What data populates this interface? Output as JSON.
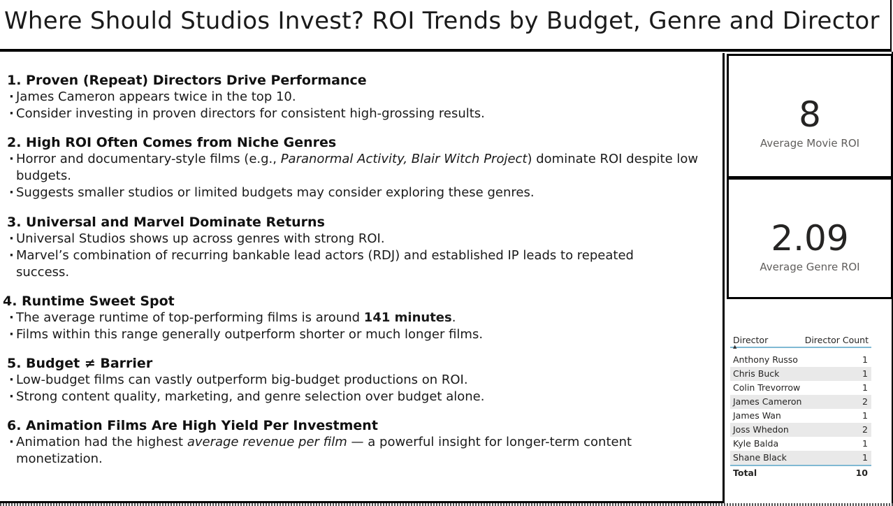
{
  "title": "Where Should Studios Invest? ROI Trends by Budget, Genre and Director",
  "sections": [
    {
      "heading": "1. Proven (Repeat) Directors Drive Performance",
      "bullets": [
        "James Cameron appears twice in the top 10.",
        "Consider investing in proven directors for consistent high-grossing results."
      ]
    },
    {
      "heading": "2. High ROI Often Comes from Niche Genres",
      "bullets": [
        {
          "pre": "Horror and documentary-style films (e.g., ",
          "em": "Paranormal Activity, Blair Witch Project",
          "post": ") dominate ROI despite low budgets."
        },
        "Suggests smaller studios or limited budgets may consider exploring these genres."
      ]
    },
    {
      "heading": "3. Universal and Marvel Dominate Returns",
      "bullets": [
        "Universal Studios shows up across genres with strong ROI.",
        "Marvel’s combination of recurring bankable lead actors (RDJ) and established IP leads to repeated success."
      ]
    },
    {
      "heading": "4. Runtime Sweet Spot",
      "bullets": [
        {
          "pre": "The average runtime of top-performing films is around ",
          "strong": "141 minutes",
          "post": "."
        },
        "Films within this range generally outperform shorter or much longer films."
      ]
    },
    {
      "heading": "5. Budget ≠ Barrier",
      "bullets": [
        "Low-budget films can vastly outperform big-budget productions on ROI.",
        "Strong content quality, marketing, and genre selection over budget alone."
      ]
    },
    {
      "heading": "6. Animation Films Are High Yield Per Investment",
      "bullets": [
        {
          "pre": "Animation had the highest ",
          "em": "average revenue per film",
          "post": " — a powerful insight for longer-term content monetization."
        }
      ]
    }
  ],
  "cards": {
    "movie_roi": {
      "value": "8",
      "label": "Average Movie ROI"
    },
    "genre_roi": {
      "value": "2.09",
      "label": "Average Genre ROI"
    }
  },
  "director_table": {
    "col_director": "Director",
    "col_count": "Director Count",
    "rows": [
      {
        "name": "Anthony Russo",
        "count": "1"
      },
      {
        "name": "Chris Buck",
        "count": "1"
      },
      {
        "name": "Colin Trevorrow",
        "count": "1"
      },
      {
        "name": "James Cameron",
        "count": "2"
      },
      {
        "name": "James Wan",
        "count": "1"
      },
      {
        "name": "Joss Whedon",
        "count": "2"
      },
      {
        "name": "Kyle Balda",
        "count": "1"
      },
      {
        "name": "Shane Black",
        "count": "1"
      }
    ],
    "total_label": "Total",
    "total_value": "10"
  }
}
